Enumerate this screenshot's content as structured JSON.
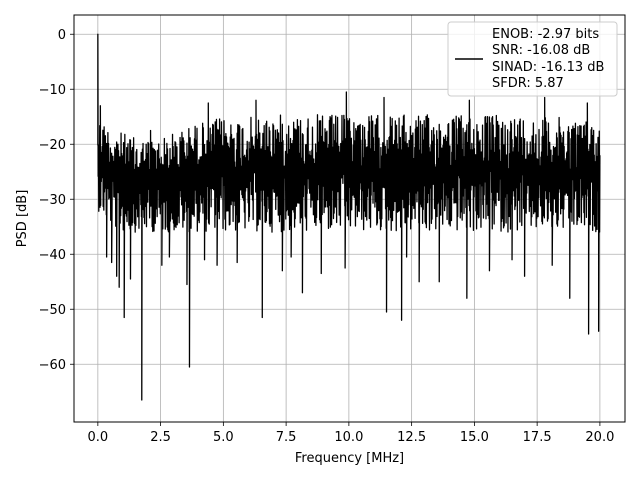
{
  "chart_data": {
    "type": "line",
    "title": "",
    "xlabel": "Frequency [MHz]",
    "ylabel": "PSD [dB]",
    "xlim": [
      -0.95,
      21.0
    ],
    "ylim": [
      -70.5,
      3.5
    ],
    "xticks": [
      0.0,
      2.5,
      5.0,
      7.5,
      10.0,
      12.5,
      15.0,
      17.5,
      20.0
    ],
    "xtick_labels": [
      "0.0",
      "2.5",
      "5.0",
      "7.5",
      "10.0",
      "12.5",
      "15.0",
      "17.5",
      "20.0"
    ],
    "yticks": [
      0,
      -10,
      -20,
      -30,
      -40,
      -50,
      -60
    ],
    "ytick_labels": [
      "0",
      "−10",
      "−20",
      "−30",
      "−40",
      "−50",
      "−60"
    ],
    "grid": true,
    "legend_position": "upper-right",
    "legend_lines": [
      "ENOB: -2.97 bits",
      "SNR: -16.08 dB",
      "SINAD: -16.13 dB",
      "SFDR: 5.87"
    ],
    "series": [
      {
        "color": "#000000",
        "band": {
          "x": [
            0.0,
            0.5,
            1.0,
            1.5,
            2.0,
            2.5,
            3.0,
            3.5,
            4.0,
            5.0,
            6.0,
            7.0,
            8.0,
            9.0,
            10.0,
            11.0,
            12.0,
            13.0,
            14.0,
            15.0,
            16.0,
            17.0,
            18.0,
            19.0,
            20.0
          ],
          "upper": [
            -14,
            -16,
            -17,
            -18,
            -18,
            -18,
            -17,
            -16,
            -15,
            -14,
            -14,
            -13.5,
            -13.5,
            -13.5,
            -13.5,
            -13.5,
            -13.5,
            -13.5,
            -13.5,
            -13.5,
            -13.5,
            -13.5,
            -14,
            -14,
            -15
          ],
          "lower": [
            -32,
            -35,
            -36,
            -36,
            -36,
            -36,
            -36,
            -36,
            -36,
            -36,
            -36,
            -36,
            -36,
            -36,
            -36,
            -36,
            -36,
            -36,
            -36,
            -36,
            -36,
            -36,
            -36,
            -36,
            -36
          ]
        },
        "peaks": [
          {
            "x": 0.0,
            "y": 0.0
          },
          {
            "x": 0.1,
            "y": -13.0
          },
          {
            "x": 2.1,
            "y": -17.5
          },
          {
            "x": 4.4,
            "y": -12.5
          },
          {
            "x": 6.3,
            "y": -12.0
          },
          {
            "x": 9.9,
            "y": -10.5
          },
          {
            "x": 11.4,
            "y": -11.5
          },
          {
            "x": 14.8,
            "y": -12.0
          },
          {
            "x": 17.8,
            "y": -11.5
          },
          {
            "x": 19.5,
            "y": -12.5
          }
        ],
        "dips": [
          {
            "x": 0.35,
            "y": -40.5
          },
          {
            "x": 0.55,
            "y": -41.5
          },
          {
            "x": 0.75,
            "y": -44.0
          },
          {
            "x": 0.85,
            "y": -46.0
          },
          {
            "x": 1.05,
            "y": -51.5
          },
          {
            "x": 1.3,
            "y": -44.5
          },
          {
            "x": 1.75,
            "y": -66.5
          },
          {
            "x": 2.55,
            "y": -42.0
          },
          {
            "x": 2.85,
            "y": -40.5
          },
          {
            "x": 3.55,
            "y": -45.5
          },
          {
            "x": 3.65,
            "y": -60.5
          },
          {
            "x": 4.25,
            "y": -41.0
          },
          {
            "x": 4.75,
            "y": -42.0
          },
          {
            "x": 5.55,
            "y": -41.5
          },
          {
            "x": 6.55,
            "y": -51.5
          },
          {
            "x": 7.35,
            "y": -43.0
          },
          {
            "x": 7.7,
            "y": -40.5
          },
          {
            "x": 8.15,
            "y": -47.0
          },
          {
            "x": 8.9,
            "y": -43.5
          },
          {
            "x": 9.85,
            "y": -42.5
          },
          {
            "x": 11.5,
            "y": -50.5
          },
          {
            "x": 12.1,
            "y": -52.0
          },
          {
            "x": 12.3,
            "y": -40.5
          },
          {
            "x": 12.8,
            "y": -45.0
          },
          {
            "x": 13.6,
            "y": -45.0
          },
          {
            "x": 14.7,
            "y": -48.0
          },
          {
            "x": 15.6,
            "y": -43.0
          },
          {
            "x": 16.5,
            "y": -41.0
          },
          {
            "x": 17.0,
            "y": -44.0
          },
          {
            "x": 18.1,
            "y": -42.0
          },
          {
            "x": 18.8,
            "y": -48.0
          },
          {
            "x": 19.55,
            "y": -54.5
          },
          {
            "x": 19.95,
            "y": -54.0
          }
        ]
      }
    ]
  }
}
